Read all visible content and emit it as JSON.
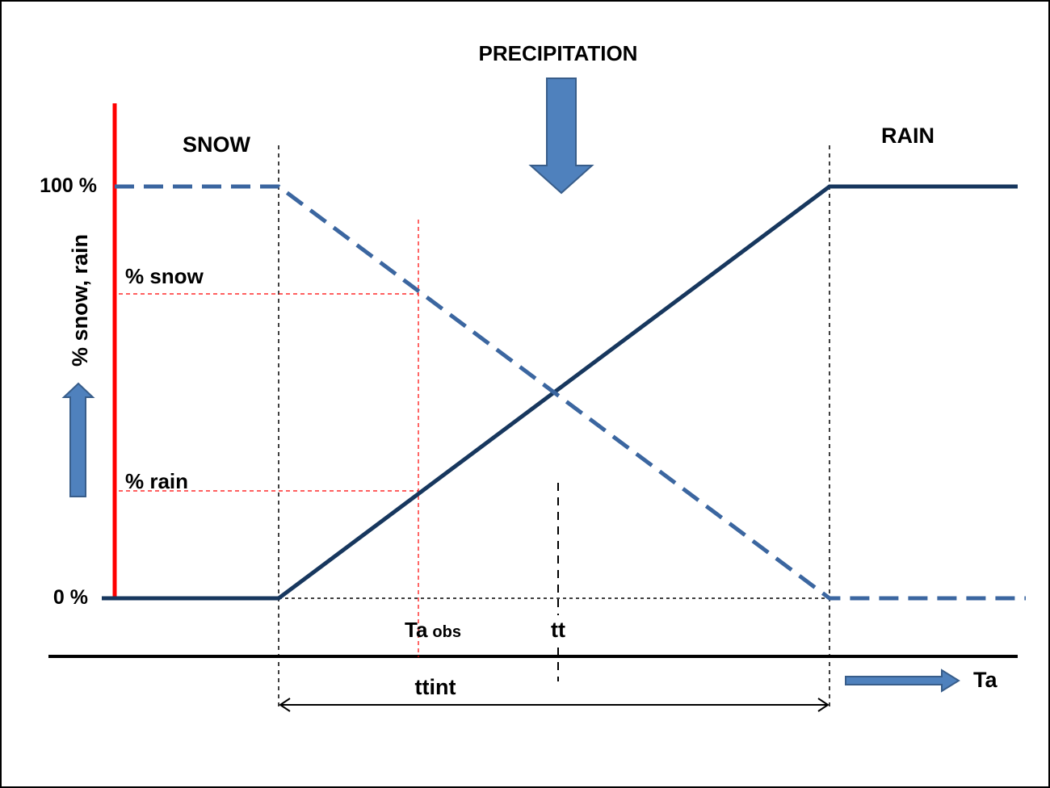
{
  "title": "PRECIPITATION",
  "region_left": "SNOW",
  "region_right": "RAIN",
  "y_axis_label": "% snow, rain",
  "y_tick_top": "100 %",
  "y_tick_bottom": "0 %",
  "snow_fraction_label": "% snow",
  "rain_fraction_label": "% rain",
  "ta_obs_main": "Ta",
  "ta_obs_sub": "obs",
  "tt_label": "tt",
  "ttint_label": "ttint",
  "x_axis_label": "Ta",
  "colors": {
    "line": "#17375e",
    "dashed": "#3b66a0",
    "arrow_fill": "#4f81bd",
    "arrow_stroke": "#385d8a",
    "axis_red": "#ff0000",
    "guide_red": "#ff0000"
  }
}
